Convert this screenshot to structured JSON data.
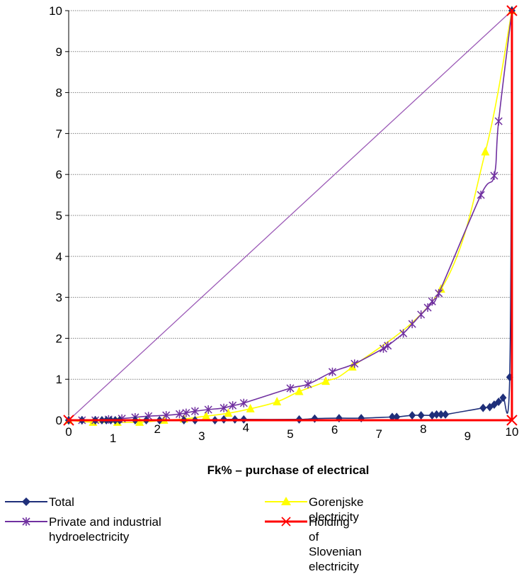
{
  "chart_data": {
    "type": "line",
    "title": "",
    "xlabel": "Fk% – purchase of electrical",
    "ylabel": "",
    "xlim": [
      0,
      10
    ],
    "ylim": [
      0,
      10
    ],
    "grid": true,
    "legend_position": "bottom",
    "x_ticks": [
      "0",
      "1",
      "2",
      "3",
      "4",
      "5",
      "6",
      "7",
      "8",
      "9",
      "10"
    ],
    "y_ticks": [
      "0",
      "1",
      "2",
      "3",
      "4",
      "5",
      "6",
      "7",
      "8",
      "9",
      "10"
    ],
    "series": [
      {
        "name": "Total",
        "color": "#1f2f7a",
        "marker": "diamond",
        "points": [
          [
            0,
            0
          ],
          [
            0.3,
            0
          ],
          [
            0.6,
            0
          ],
          [
            0.75,
            0
          ],
          [
            0.85,
            0
          ],
          [
            0.95,
            0
          ],
          [
            1.05,
            0
          ],
          [
            1.15,
            0
          ],
          [
            1.5,
            0
          ],
          [
            1.75,
            0
          ],
          [
            2.05,
            0
          ],
          [
            2.6,
            0
          ],
          [
            2.85,
            0
          ],
          [
            3.3,
            0
          ],
          [
            3.5,
            0.02
          ],
          [
            3.75,
            0.02
          ],
          [
            3.95,
            0.02
          ],
          [
            5.2,
            0.02
          ],
          [
            5.55,
            0.04
          ],
          [
            6.1,
            0.05
          ],
          [
            6.6,
            0.05
          ],
          [
            7.3,
            0.08
          ],
          [
            7.4,
            0.08
          ],
          [
            7.75,
            0.12
          ],
          [
            7.95,
            0.12
          ],
          [
            8.2,
            0.12
          ],
          [
            8.3,
            0.14
          ],
          [
            8.4,
            0.14
          ],
          [
            8.5,
            0.14
          ],
          [
            9.35,
            0.3
          ],
          [
            9.5,
            0.32
          ],
          [
            9.6,
            0.38
          ],
          [
            9.7,
            0.45
          ],
          [
            9.8,
            0.55
          ],
          [
            9.95,
            1.05
          ],
          [
            10,
            10
          ]
        ]
      },
      {
        "name": "Gorenjske electricity",
        "color": "#ffff00",
        "marker": "triangle",
        "points": [
          [
            0,
            0
          ],
          [
            0.55,
            -0.05
          ],
          [
            1.1,
            -0.05
          ],
          [
            1.6,
            -0.05
          ],
          [
            2.15,
            0
          ],
          [
            2.6,
            0.03
          ],
          [
            3.1,
            0.1
          ],
          [
            3.6,
            0.17
          ],
          [
            4.1,
            0.28
          ],
          [
            4.7,
            0.45
          ],
          [
            5.2,
            0.7
          ],
          [
            5.8,
            0.95
          ],
          [
            6.4,
            1.3
          ],
          [
            8.4,
            3.2
          ],
          [
            9.4,
            6.55
          ],
          [
            10,
            10
          ]
        ]
      },
      {
        "name": "Private and industrial hydroelectricity",
        "color": "#7030a0",
        "marker": "asterisk",
        "points": [
          [
            0,
            0
          ],
          [
            0.3,
            0
          ],
          [
            0.6,
            0
          ],
          [
            0.9,
            0.02
          ],
          [
            1.2,
            0.04
          ],
          [
            1.5,
            0.07
          ],
          [
            1.8,
            0.1
          ],
          [
            2.2,
            0.12
          ],
          [
            2.5,
            0.15
          ],
          [
            2.65,
            0.18
          ],
          [
            2.85,
            0.22
          ],
          [
            3.15,
            0.26
          ],
          [
            3.5,
            0.3
          ],
          [
            3.7,
            0.36
          ],
          [
            3.95,
            0.42
          ],
          [
            5.0,
            0.78
          ],
          [
            5.4,
            0.88
          ],
          [
            5.95,
            1.18
          ],
          [
            6.45,
            1.38
          ],
          [
            7.1,
            1.75
          ],
          [
            7.2,
            1.82
          ],
          [
            7.55,
            2.12
          ],
          [
            7.75,
            2.35
          ],
          [
            7.95,
            2.58
          ],
          [
            8.1,
            2.75
          ],
          [
            8.2,
            2.9
          ],
          [
            8.35,
            3.1
          ],
          [
            9.3,
            5.5
          ],
          [
            9.6,
            5.97
          ],
          [
            9.7,
            7.3
          ],
          [
            10,
            10
          ]
        ]
      },
      {
        "name": "Holding of Slovenian electricity",
        "color": "#ff0000",
        "marker": "x",
        "points": [
          [
            0,
            0
          ],
          [
            10,
            0
          ],
          [
            10,
            10
          ]
        ]
      },
      {
        "name": "",
        "color": "#9b59b6",
        "marker": "none",
        "points": [
          [
            0,
            0
          ],
          [
            10,
            10
          ]
        ]
      }
    ]
  },
  "legend": {
    "items": [
      {
        "label": "Total"
      },
      {
        "label": "Gorenjske electricity"
      },
      {
        "label": "Private and industrial hydroelectricity"
      },
      {
        "label": "Holding of Slovenian electricity"
      }
    ]
  }
}
